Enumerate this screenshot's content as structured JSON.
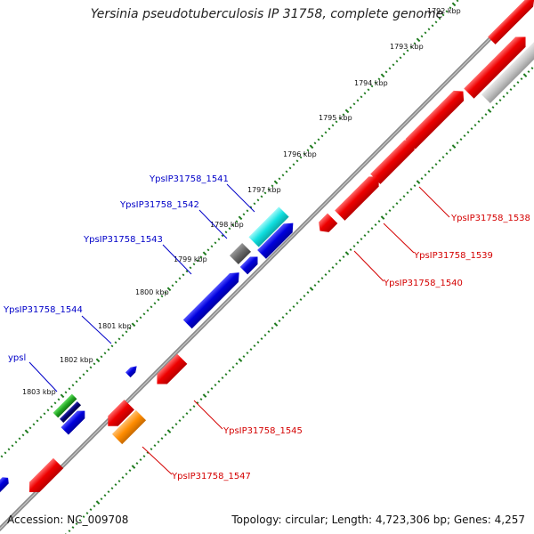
{
  "title": "Yersinia pseudotuberculosis IP 31758, complete genome",
  "footer": {
    "accession": "Accession: NC_009708",
    "summary": "Topology: circular; Length: 4,723,306 bp; Genes: 4,257"
  },
  "colors": {
    "background": "#ffffff",
    "backbone": "#808080",
    "ticks": "#1e7a1e",
    "label_blue": "#0000c8",
    "label_red": "#d40000",
    "gene_red": "#ee0000",
    "gene_blue": "#0000dd",
    "gene_cyan": "#11e0e0",
    "gene_gray": "#6a6a6a",
    "gene_lightgray": "#c4c4c4",
    "gene_green": "#22aa22",
    "gene_navy": "#000070",
    "gene_orange": "#ff8c00"
  },
  "kbp_labels": [
    "1792 kbp",
    "1793 kbp",
    "1794 kbp",
    "1795 kbp",
    "1796 kbp",
    "1797 kbp",
    "1798 kbp",
    "1799 kbp",
    "1800 kbp",
    "1801 kbp",
    "1802 kbp",
    "1803 kbp"
  ],
  "gene_labels": {
    "g1541": "YpsIP31758_1541",
    "g1542": "YpsIP31758_1542",
    "g1543": "YpsIP31758_1543",
    "g1544": "YpsIP31758_1544",
    "ypsl": "ypsl",
    "g1538": "YpsIP31758_1538",
    "g1539": "YpsIP31758_1539",
    "g1540": "YpsIP31758_1540",
    "g1545": "YpsIP31758_1545",
    "g1547": "YpsIP31758_1547"
  }
}
